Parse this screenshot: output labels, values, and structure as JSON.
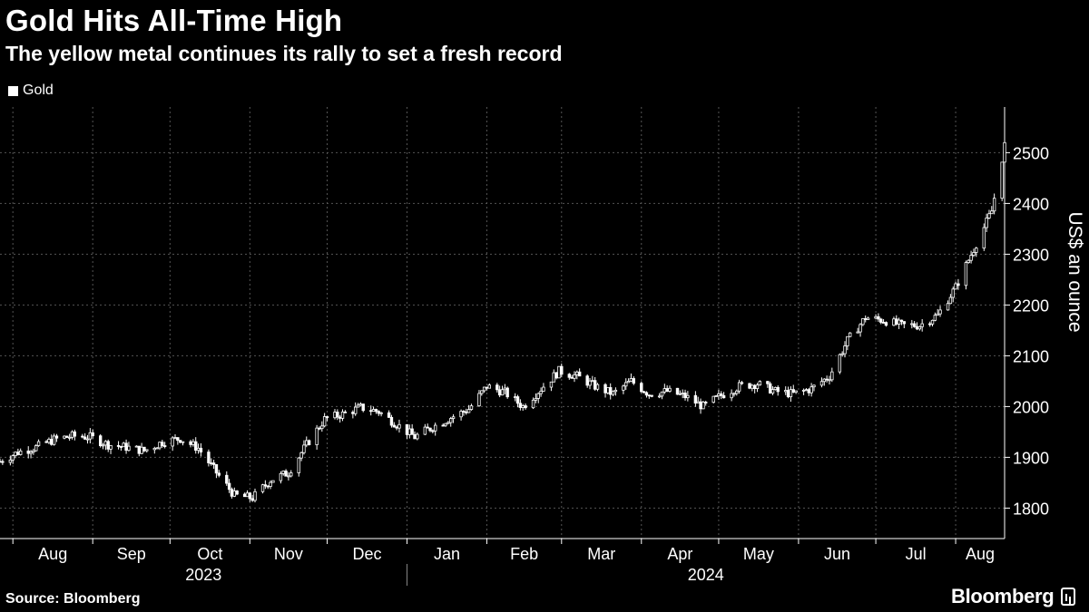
{
  "title": "Gold Hits All-Time High",
  "subtitle": "The yellow metal continues its rally to set a fresh record",
  "source": "Source: Bloomberg",
  "brand": "Bloomberg",
  "colors": {
    "background": "#000000",
    "foreground": "#ffffff",
    "grid": "#555555"
  },
  "chart_data": {
    "type": "candlestick",
    "title": "Gold Hits All-Time High",
    "subtitle": "The yellow metal continues its rally to set a fresh record",
    "legend": [
      "Gold"
    ],
    "legend_position": "top-left",
    "ylabel": "US$ an ounce",
    "y_axis_side": "right",
    "ylim": [
      1740,
      2590
    ],
    "yticks": [
      1800,
      1900,
      2000,
      2100,
      2200,
      2300,
      2400,
      2500
    ],
    "grid": true,
    "xlim": [
      "2023-07-27",
      "2024-08-20"
    ],
    "month_ticks": [
      {
        "label": "Aug",
        "date": "2023-08-01"
      },
      {
        "label": "Sep",
        "date": "2023-09-01"
      },
      {
        "label": "Oct",
        "date": "2023-10-01"
      },
      {
        "label": "Nov",
        "date": "2023-11-01"
      },
      {
        "label": "Dec",
        "date": "2023-12-01"
      },
      {
        "label": "Jan",
        "date": "2024-01-01"
      },
      {
        "label": "Feb",
        "date": "2024-02-01"
      },
      {
        "label": "Mar",
        "date": "2024-03-01"
      },
      {
        "label": "Apr",
        "date": "2024-04-01"
      },
      {
        "label": "May",
        "date": "2024-05-01"
      },
      {
        "label": "Jun",
        "date": "2024-06-01"
      },
      {
        "label": "Jul",
        "date": "2024-07-01"
      },
      {
        "label": "Aug",
        "date": "2024-08-01"
      }
    ],
    "year_labels": [
      {
        "label": "2023",
        "from": "2023-07-27",
        "to": "2024-01-01"
      },
      {
        "label": "2024",
        "from": "2024-01-01",
        "to": "2024-08-20"
      }
    ],
    "series": [
      {
        "name": "Gold",
        "closes": [
          {
            "date": "2023-07-27",
            "value": 1892
          },
          {
            "date": "2023-08-03",
            "value": 1910
          },
          {
            "date": "2023-08-10",
            "value": 1920
          },
          {
            "date": "2023-08-17",
            "value": 1935
          },
          {
            "date": "2023-08-24",
            "value": 1942
          },
          {
            "date": "2023-08-31",
            "value": 1940
          },
          {
            "date": "2023-09-07",
            "value": 1925
          },
          {
            "date": "2023-09-14",
            "value": 1920
          },
          {
            "date": "2023-09-21",
            "value": 1913
          },
          {
            "date": "2023-09-28",
            "value": 1930
          },
          {
            "date": "2023-10-05",
            "value": 1937
          },
          {
            "date": "2023-10-12",
            "value": 1918
          },
          {
            "date": "2023-10-19",
            "value": 1870
          },
          {
            "date": "2023-10-26",
            "value": 1825
          },
          {
            "date": "2023-11-02",
            "value": 1820
          },
          {
            "date": "2023-11-09",
            "value": 1855
          },
          {
            "date": "2023-11-16",
            "value": 1870
          },
          {
            "date": "2023-11-23",
            "value": 1925
          },
          {
            "date": "2023-11-30",
            "value": 1975
          },
          {
            "date": "2023-12-07",
            "value": 1985
          },
          {
            "date": "2023-12-14",
            "value": 1998
          },
          {
            "date": "2023-12-21",
            "value": 1990
          },
          {
            "date": "2023-12-28",
            "value": 1965
          },
          {
            "date": "2024-01-04",
            "value": 1940
          },
          {
            "date": "2024-01-11",
            "value": 1960
          },
          {
            "date": "2024-01-18",
            "value": 1978
          },
          {
            "date": "2024-01-25",
            "value": 1995
          },
          {
            "date": "2024-02-01",
            "value": 2040
          },
          {
            "date": "2024-02-08",
            "value": 2028
          },
          {
            "date": "2024-02-15",
            "value": 2000
          },
          {
            "date": "2024-02-22",
            "value": 2035
          },
          {
            "date": "2024-02-29",
            "value": 2070
          },
          {
            "date": "2024-03-07",
            "value": 2060
          },
          {
            "date": "2024-03-14",
            "value": 2040
          },
          {
            "date": "2024-03-21",
            "value": 2025
          },
          {
            "date": "2024-03-28",
            "value": 2050
          },
          {
            "date": "2024-04-04",
            "value": 2025
          },
          {
            "date": "2024-04-11",
            "value": 2030
          },
          {
            "date": "2024-04-18",
            "value": 2020
          },
          {
            "date": "2024-04-25",
            "value": 2000
          },
          {
            "date": "2024-05-02",
            "value": 2022
          },
          {
            "date": "2024-05-09",
            "value": 2040
          },
          {
            "date": "2024-05-16",
            "value": 2045
          },
          {
            "date": "2024-05-23",
            "value": 2030
          },
          {
            "date": "2024-05-30",
            "value": 2025
          },
          {
            "date": "2024-06-06",
            "value": 2035
          },
          {
            "date": "2024-06-13",
            "value": 2060
          },
          {
            "date": "2024-06-20",
            "value": 2130
          },
          {
            "date": "2024-06-27",
            "value": 2175
          },
          {
            "date": "2024-07-04",
            "value": 2170
          },
          {
            "date": "2024-07-11",
            "value": 2160
          },
          {
            "date": "2024-07-18",
            "value": 2160
          },
          {
            "date": "2024-07-25",
            "value": 2180
          },
          {
            "date": "2024-08-01",
            "value": 2235
          },
          {
            "date": "2024-08-08",
            "value": 2310
          },
          {
            "date": "2024-08-15",
            "value": 2385
          },
          {
            "date": "2024-08-20",
            "value": 2515
          }
        ]
      }
    ]
  }
}
